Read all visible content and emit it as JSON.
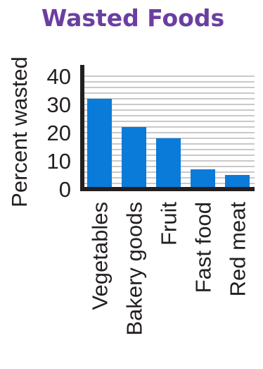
{
  "colors": {
    "title": "#6b3fa0",
    "bar": "#0a7bd9",
    "grid": "#c9c9c9",
    "axis": "#231f20",
    "text": "#231f20"
  },
  "chart_data": {
    "type": "bar",
    "title": "Wasted Foods",
    "xlabel": "",
    "ylabel": "Percent wasted",
    "categories": [
      "Vegetables",
      "Bakery goods",
      "Fruit",
      "Fast food",
      "Red meat"
    ],
    "values": [
      32,
      22,
      18,
      7,
      5
    ],
    "ylim": [
      0,
      40
    ],
    "yticks": [
      "0",
      "10",
      "20",
      "30",
      "40"
    ],
    "grid": true,
    "legend": "none"
  }
}
